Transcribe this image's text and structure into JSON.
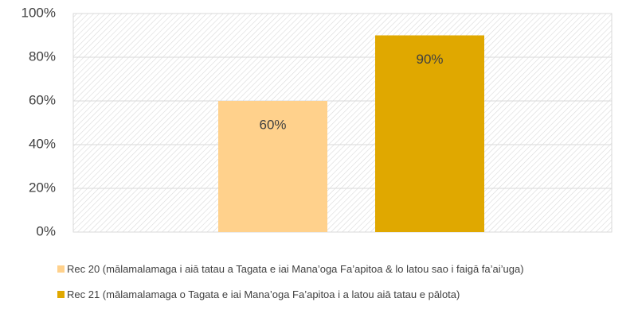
{
  "chart_data": {
    "type": "bar",
    "categories": [
      null
    ],
    "series": [
      {
        "name": "Rec 20 (mālamalamaga i aiā tatau a Tagata e iai Mana’oga Fa’apitoa & lo latou sao i faigā fa’ai’uga)",
        "color": "#ffd18c",
        "values": [
          60
        ],
        "value_labels": [
          "60%"
        ]
      },
      {
        "name": "Rec 21 (mālamalamaga o Tagata e iai Mana’oga Fa’apitoa i a latou aiā tatau e pālota)",
        "color": "#e0a800",
        "values": [
          90
        ],
        "value_labels": [
          "90%"
        ]
      }
    ],
    "ylim": [
      0,
      100
    ],
    "yticks": [
      {
        "value": 0,
        "label": "0%"
      },
      {
        "value": 20,
        "label": "20%"
      },
      {
        "value": 40,
        "label": "40%"
      },
      {
        "value": 60,
        "label": "60%"
      },
      {
        "value": 80,
        "label": "80%"
      },
      {
        "value": 100,
        "label": "100%"
      }
    ],
    "grid": true,
    "legend": "bottom"
  }
}
